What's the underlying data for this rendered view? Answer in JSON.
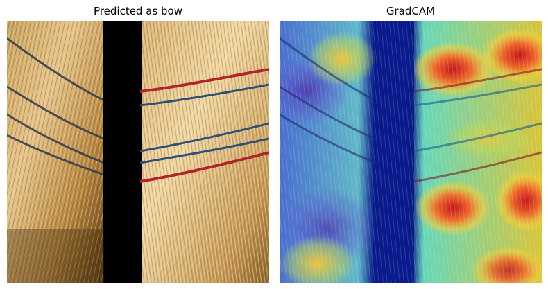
{
  "figure": {
    "left_title": "Predicted as bow",
    "right_title": "GradCAM"
  },
  "left_image": {
    "description_icon": "straw-broom-photo-icon",
    "colors": {
      "straw_light": "#e8c98a",
      "straw_dark": "#7a5320",
      "occlusion": "#000000",
      "red_band": "#b4232a",
      "blue_band": "#2c4f78"
    }
  },
  "right_image": {
    "description_icon": "gradcam-heatmap-icon",
    "colors": {
      "hot": "#d8261f",
      "warm": "#f2b233",
      "mid": "#5fd0b8",
      "cool": "#3b5fc2",
      "cold": "#0a1a8c"
    }
  }
}
